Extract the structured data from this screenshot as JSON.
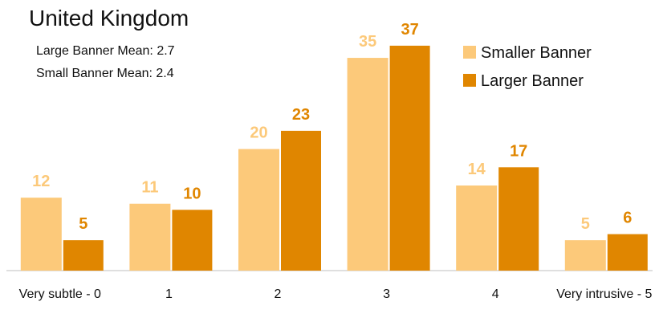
{
  "chart_data": {
    "type": "bar",
    "title": "United Kingdom",
    "annotations": [
      "Large Banner Mean: 2.7",
      "Small Banner Mean: 2.4"
    ],
    "categories": [
      "Very subtle - 0",
      "1",
      "2",
      "3",
      "4",
      "Very intrusive - 5"
    ],
    "series": [
      {
        "name": "Smaller Banner",
        "color": "#fcc97a",
        "values": [
          12,
          11,
          20,
          35,
          14,
          5
        ]
      },
      {
        "name": "Larger Banner",
        "color": "#e08600",
        "values": [
          5,
          10,
          23,
          37,
          17,
          6
        ]
      }
    ],
    "legend": "top-right"
  }
}
